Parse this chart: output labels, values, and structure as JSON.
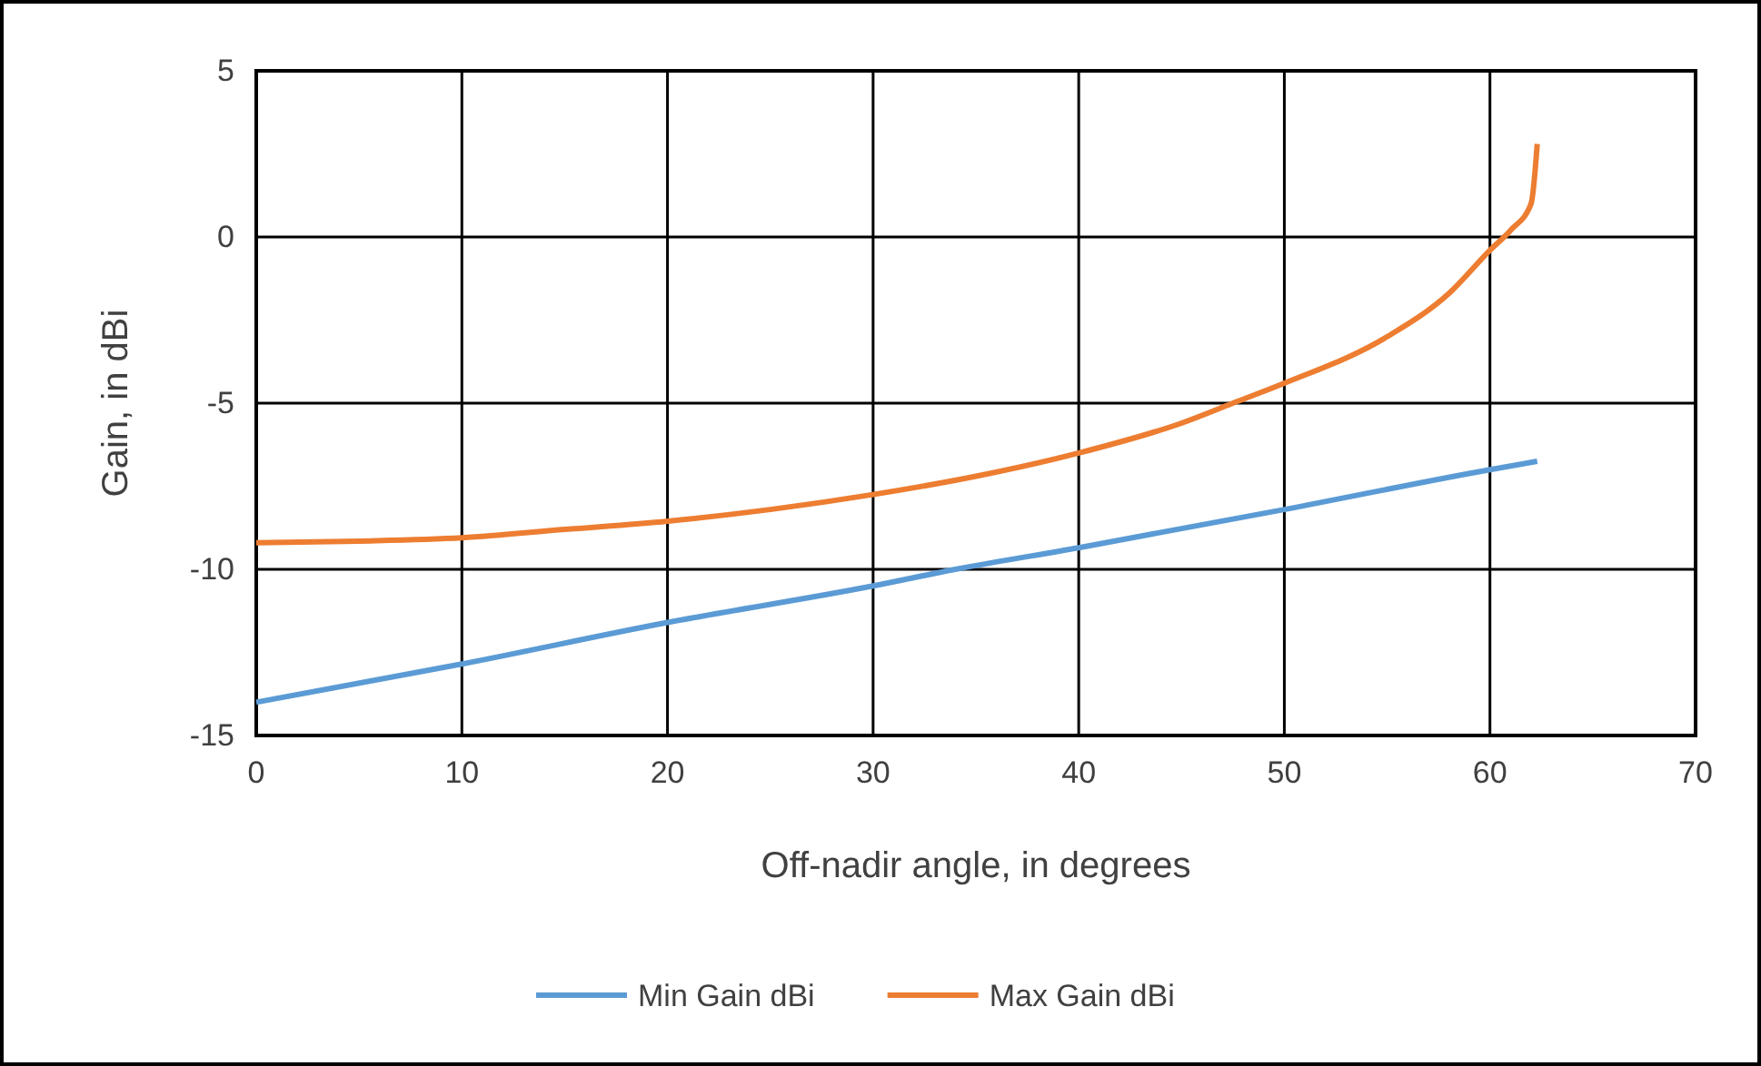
{
  "chart_data": {
    "type": "line",
    "xlabel": "Off-nadir angle, in degrees",
    "ylabel": "Gain, in dBi",
    "xlim": [
      0,
      70
    ],
    "xticks": [
      0,
      10,
      20,
      30,
      40,
      50,
      60,
      70
    ],
    "ylim": [
      -15,
      5
    ],
    "yticks": [
      -15,
      -10,
      -5,
      0,
      5
    ],
    "grid": true,
    "legend": "bottom",
    "line_style": "solid",
    "marker": "none",
    "series": [
      {
        "name": "Min Gain dBi",
        "color": "#5b9bd5",
        "x": [
          0,
          10,
          20,
          30,
          34,
          40,
          50,
          60,
          62.3
        ],
        "values": [
          -14,
          -12.85,
          -11.6,
          -10.5,
          -10,
          -9.35,
          -8.2,
          -7,
          -6.75
        ]
      },
      {
        "name": "Max Gain dBi",
        "color": "#ed7d31",
        "x": [
          0,
          5,
          10,
          15,
          20,
          25,
          30,
          35,
          40,
          45,
          47.5,
          50,
          55,
          58,
          60,
          61,
          62,
          62.3
        ],
        "values": [
          -9.2,
          -9.15,
          -9.05,
          -8.8,
          -8.55,
          -8.2,
          -7.75,
          -7.2,
          -6.5,
          -5.6,
          -5,
          -4.4,
          -3,
          -1.7,
          -0.4,
          0.2,
          1,
          2.8
        ]
      }
    ]
  }
}
